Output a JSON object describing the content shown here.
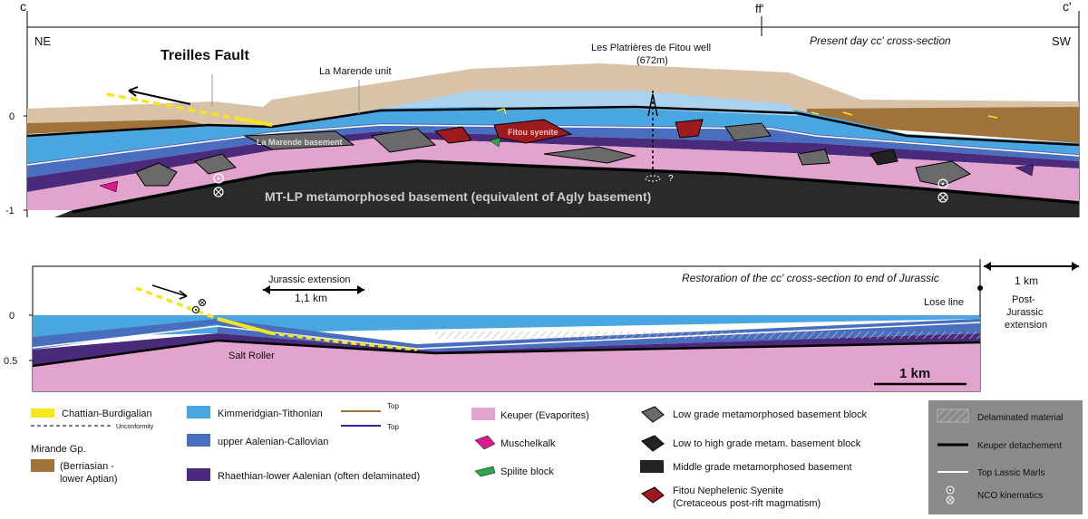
{
  "section": {
    "corner_left": "c",
    "corner_mid": "ff'",
    "corner_right": "c'",
    "ne": "NE",
    "sw": "SW",
    "title": "Present day cc' cross-section",
    "fault": "Treilles Fault",
    "marende_unit": "La Marende unit",
    "well_name": "Les Platrières de Fitou well",
    "well_depth": "(672m)",
    "marende_basement": "La Marende basement",
    "fitou_syenite": "Fitou syenite",
    "question": "?",
    "basement_label": "MT-LP metamorphosed  basement  (equivalent of Agly basement)",
    "axis_0": "0",
    "axis_m1": "-1"
  },
  "restoration": {
    "title": "Restoration of the cc' cross-section to end of Jurassic",
    "extension_label": "Jurassic extension",
    "extension_value": "1,1 km",
    "salt_roller": "Salt Roller",
    "lose_line": "Lose line",
    "scale": "1 km",
    "post_value": "1 km",
    "post_label_1": "Post-",
    "post_label_2": "Jurassic",
    "post_label_3": "extension",
    "axis_0": "0",
    "axis_05": "0.5"
  },
  "legend": {
    "chattian": "Chattian-Burdigalian",
    "unconformity": "Unconformity",
    "mirande_1": "Mirande Gp.",
    "mirande_2": "(Berriasian -",
    "mirande_3": "lower Aptian)",
    "kimmeridgian": "Kimmeridgian-Tithonian",
    "aalenian": "upper Aalenian-Callovian",
    "rhaethian": "Rhaethian-lower Aalenian (often delaminated)",
    "top1": "Top",
    "top2": "Top",
    "keuper": "Keuper (Evaporites)",
    "muschelkalk": "Muschelkalk",
    "spilite": "Spilite block",
    "low_grade": "Low grade metamorphosed  basement block",
    "low_high": "Low to high grade metam. basement block",
    "middle_grade": "Middle grade metamorphosed basement",
    "fitou_1": "Fitou Nephelenic Syenite",
    "fitou_2": "(Cretaceous post-rift magmatism)",
    "delaminated": "Delaminated material",
    "keuper_det": "Keuper detachement",
    "top_lassic": "Top Lassic Marls",
    "nco": "NCO kinematics"
  },
  "colors": {
    "chattian": "#f5e51c",
    "mirande": "#a0733a",
    "kimmeridgian": "#4aa6e0",
    "aalenian": "#4a6ebf",
    "rhaethian": "#4a2a7a",
    "keuper": "#e2a3ce",
    "muschelkalk": "#d81b8c",
    "spilite": "#2aa84a",
    "low_grade": "#6a6a6a",
    "low_high": "#222222",
    "middle": "#222222",
    "fitou": "#9e1a1e",
    "overburden": "#d9c3a8",
    "legend_box": "#8a8a8a"
  }
}
